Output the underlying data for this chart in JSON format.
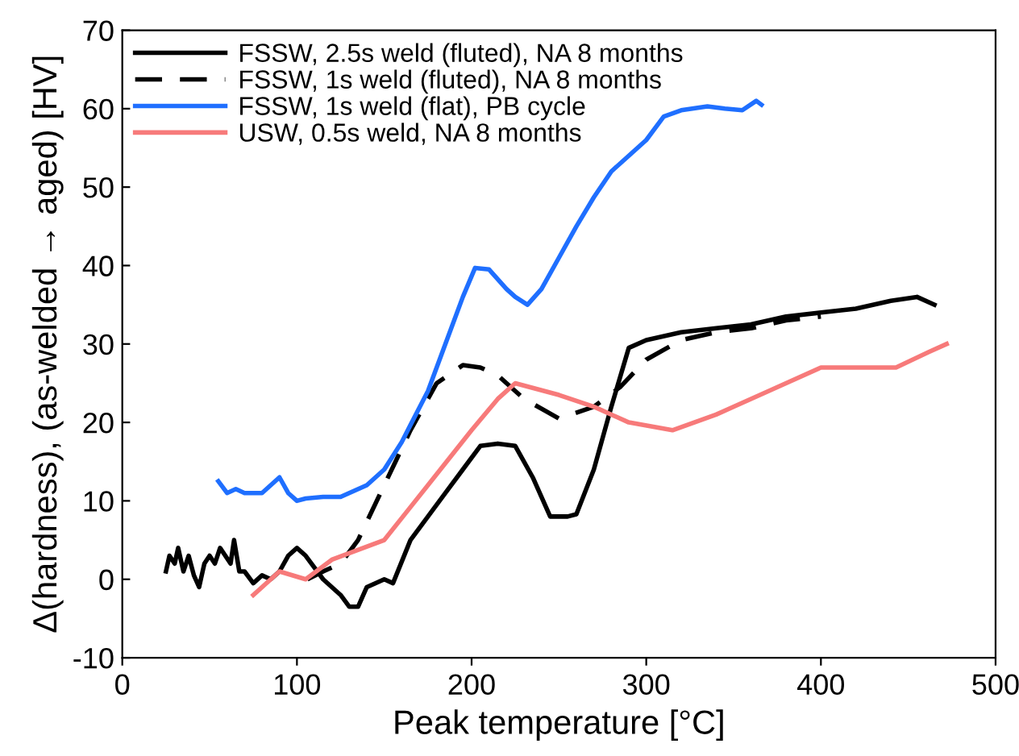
{
  "chart_data": {
    "type": "line",
    "xlabel": "Peak temperature [°C]",
    "ylabel": "Δ(hardness), (as-welded → aged) [HV]",
    "xlim": [
      0,
      500
    ],
    "xticks": [
      0,
      100,
      200,
      300,
      400,
      500
    ],
    "ylim": [
      -10,
      70
    ],
    "yticks": [
      -10,
      0,
      10,
      20,
      30,
      40,
      50,
      60,
      70
    ],
    "grid": false,
    "legend": "top left",
    "marker": "none",
    "series": [
      {
        "name": "FSSW, 2.5s weld (fluted), NA 8 months",
        "color": "#000000",
        "line_style": "solid",
        "x": [
          25,
          27,
          30,
          32,
          35,
          38,
          41,
          44,
          47,
          50,
          53,
          56,
          59,
          62,
          64,
          67,
          70,
          75,
          80,
          85,
          90,
          95,
          100,
          105,
          115,
          125,
          130,
          135,
          140,
          150,
          155,
          165,
          175,
          185,
          195,
          205,
          215,
          225,
          235,
          245,
          255,
          260,
          270,
          280,
          290,
          300,
          320,
          340,
          360,
          380,
          400,
          420,
          440,
          455,
          465
        ],
        "values": [
          1,
          3,
          2,
          4,
          1,
          3,
          0.5,
          -1,
          2,
          3,
          2,
          4,
          3,
          2,
          5,
          1,
          1,
          -0.5,
          0.5,
          0,
          1,
          3,
          4,
          3,
          0,
          -2,
          -3.5,
          -3.5,
          -1,
          0,
          -0.5,
          5,
          8,
          11,
          14,
          17,
          17.3,
          17,
          13,
          8,
          8,
          8.3,
          14,
          22,
          29.5,
          30.5,
          31.5,
          32,
          32.5,
          33.5,
          34,
          34.5,
          35.5,
          36,
          35
        ]
      },
      {
        "name": "FSSW, 1s weld (fluted), NA 8 months",
        "color": "#000000",
        "line_style": "dashed",
        "x": [
          106,
          115,
          125,
          135,
          150,
          165,
          180,
          195,
          205,
          215,
          230,
          250,
          270,
          285,
          300,
          320,
          340,
          360,
          380,
          400
        ],
        "values": [
          0,
          1,
          2,
          5,
          12,
          19,
          25,
          27.3,
          27,
          26,
          23,
          20.5,
          22,
          24.5,
          28,
          30.5,
          31.5,
          32,
          33,
          33.5
        ]
      },
      {
        "name": "FSSW, 1s weld (flat), PB cycle",
        "color": "#1f6fff",
        "line_style": "solid",
        "x": [
          55,
          60,
          65,
          70,
          80,
          85,
          90,
          95,
          100,
          105,
          115,
          125,
          140,
          150,
          160,
          175,
          185,
          195,
          202,
          210,
          220,
          225,
          232,
          240,
          250,
          260,
          270,
          280,
          290,
          300,
          310,
          320,
          335,
          345,
          355,
          363,
          366
        ],
        "values": [
          12.5,
          11,
          11.5,
          11,
          11,
          12,
          13,
          11,
          10,
          10.3,
          10.5,
          10.5,
          12,
          14,
          17.5,
          24,
          30,
          36,
          39.7,
          39.5,
          37,
          36,
          35,
          37,
          41,
          45,
          48.7,
          52,
          54,
          56,
          59,
          59.8,
          60.3,
          60,
          59.8,
          61,
          60.5
        ]
      },
      {
        "name": "USW, 0.5s weld, NA 8 months",
        "color": "#f77a7a",
        "line_style": "solid",
        "x": [
          75,
          90,
          105,
          120,
          150,
          175,
          200,
          215,
          225,
          250,
          270,
          290,
          315,
          340,
          370,
          400,
          443,
          462,
          472
        ],
        "values": [
          -2,
          1,
          0,
          2.5,
          5,
          12,
          19,
          23,
          25,
          23.5,
          22,
          20,
          19,
          21,
          24,
          27,
          27,
          29,
          30
        ]
      }
    ]
  }
}
